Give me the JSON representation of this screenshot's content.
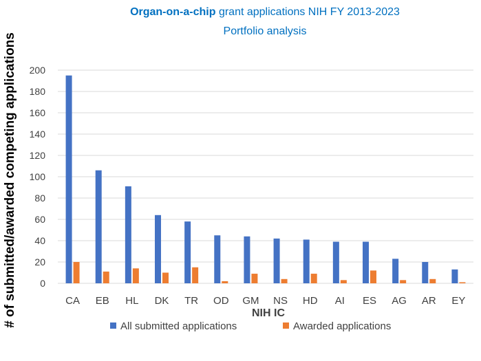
{
  "chart_data": {
    "type": "bar",
    "title_bold": "Organ-on-a-chip",
    "title_rest": " grant applications NIH FY 2013-2023",
    "subtitle": "Portfolio analysis",
    "xlabel": "NIH IC",
    "ylabel": "# of submitted/awarded competing applications",
    "ylim": [
      0,
      200
    ],
    "yticks": [
      0,
      20,
      40,
      60,
      80,
      100,
      120,
      140,
      160,
      180,
      200
    ],
    "ytick_labels": [
      "0",
      "20",
      "40",
      "60",
      "80",
      "100",
      "120",
      "140",
      "160",
      "180",
      "200"
    ],
    "grid": true,
    "legend_position": "bottom",
    "categories": [
      "CA",
      "EB",
      "HL",
      "DK",
      "TR",
      "OD",
      "GM",
      "NS",
      "HD",
      "AI",
      "ES",
      "AG",
      "AR",
      "EY"
    ],
    "series": [
      {
        "name": "All submitted applications",
        "color": "#4472C4",
        "values": [
          195,
          106,
          91,
          64,
          58,
          45,
          44,
          42,
          41,
          39,
          39,
          23,
          20,
          13
        ]
      },
      {
        "name": "Awarded applications",
        "color": "#ED7D31",
        "values": [
          20,
          11,
          14,
          10,
          15,
          2,
          9,
          4,
          9,
          3,
          12,
          3,
          4,
          1
        ]
      }
    ],
    "colors": {
      "title": "#0070C0",
      "text": "#404040",
      "axis_label": "#000000",
      "grid": "#D9D9D9"
    }
  }
}
